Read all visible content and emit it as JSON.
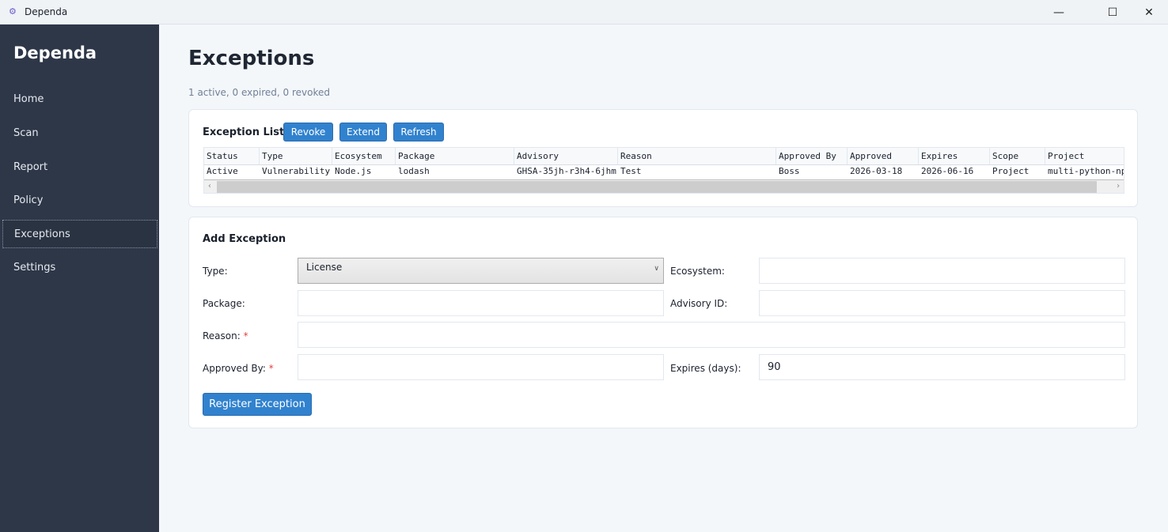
{
  "window": {
    "title": "Dependa"
  },
  "sidebar": {
    "brand": "Dependa",
    "items": [
      {
        "label": "Home"
      },
      {
        "label": "Scan"
      },
      {
        "label": "Report"
      },
      {
        "label": "Policy"
      },
      {
        "label": "Exceptions",
        "active": true
      },
      {
        "label": "Settings"
      }
    ]
  },
  "page": {
    "title": "Exceptions",
    "summary": "1 active, 0 expired, 0 revoked"
  },
  "list": {
    "title": "Exception List",
    "revoke": "Revoke",
    "extend": "Extend",
    "refresh": "Refresh",
    "columns": [
      "Status",
      "Type",
      "Ecosystem",
      "Package",
      "Advisory",
      "Reason",
      "Approved By",
      "Approved",
      "Expires",
      "Scope",
      "Project"
    ],
    "rows": [
      [
        "Active",
        "Vulnerability",
        "Node.js",
        "lodash",
        "GHSA-35jh-r3h4-6jhm",
        "Test",
        "Boss",
        "2026-03-18",
        "2026-06-16",
        "Project",
        "multi-python-np"
      ]
    ]
  },
  "form": {
    "title": "Add Exception",
    "type_label": "Type:",
    "type_value": "License",
    "ecosystem_label": "Ecosystem:",
    "ecosystem_value": "",
    "package_label": "Package:",
    "package_value": "",
    "advisory_label": "Advisory ID:",
    "advisory_value": "",
    "reason_label": "Reason:",
    "reason_value": "",
    "approved_by_label": "Approved By:",
    "approved_by_value": "",
    "expires_label": "Expires (days):",
    "expires_value": "90",
    "required_mark": "*",
    "submit": "Register Exception"
  },
  "colors": {
    "sidebar": "#2d3748",
    "accent": "#3182ce",
    "required": "#e53e3e"
  }
}
